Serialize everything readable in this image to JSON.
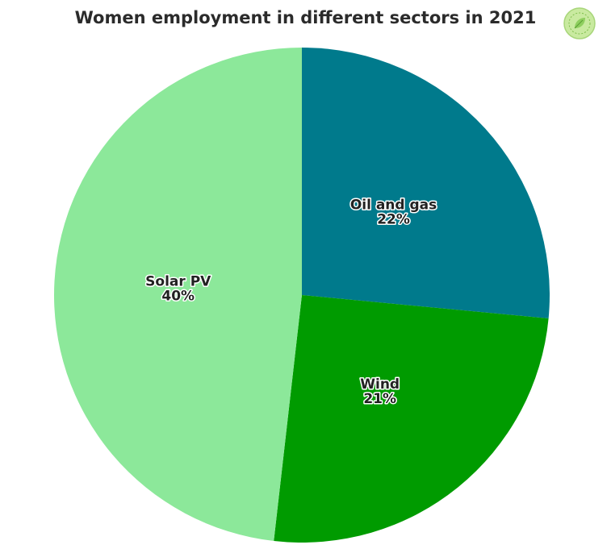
{
  "chart_data": {
    "type": "pie",
    "title": "Women employment in different sectors in 2021",
    "slices": [
      {
        "label": "Oil and gas",
        "value": 22,
        "value_label": "22%",
        "color": "#007a8c"
      },
      {
        "label": "Wind",
        "value": 21,
        "value_label": "21%",
        "color": "#009b00"
      },
      {
        "label": "Solar PV",
        "value": 40,
        "value_label": "40%",
        "color": "#8ce89a"
      }
    ],
    "start_angle": "12 o'clock",
    "direction": "clockwise",
    "legend": "none"
  },
  "logo": {
    "icon": "leaf-logo-icon",
    "background": "#c9eaa0",
    "ring": "#7fbf4d"
  }
}
